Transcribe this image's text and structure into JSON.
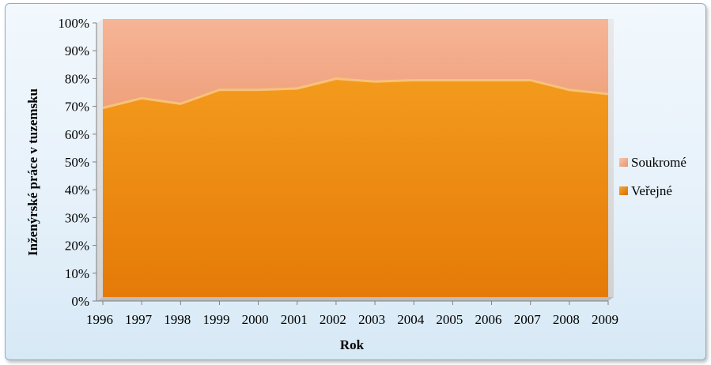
{
  "chart_data": {
    "type": "area",
    "stacked_percent": true,
    "x": [
      "1996",
      "1997",
      "1998",
      "1999",
      "2000",
      "2001",
      "2002",
      "2003",
      "2004",
      "2005",
      "2006",
      "2007",
      "2008",
      "2009"
    ],
    "series": [
      {
        "name": "Veřejné",
        "values": [
          68,
          71.5,
          69.5,
          74.5,
          74.5,
          75,
          78.5,
          77.5,
          78,
          78,
          78,
          78,
          74.5,
          73
        ],
        "color": "#e8820e"
      },
      {
        "name": "Soukromé",
        "values": [
          32,
          28.5,
          30.5,
          25.5,
          25.5,
          25,
          21.5,
          22.5,
          22,
          22,
          22,
          22,
          25.5,
          27
        ],
        "color": "#f0a27c"
      }
    ],
    "yticks": [
      "0%",
      "10%",
      "20%",
      "30%",
      "40%",
      "50%",
      "60%",
      "70%",
      "80%",
      "90%",
      "100%"
    ],
    "ylim": [
      0,
      100
    ],
    "xlabel": "Rok",
    "ylabel": "Inženýrské práce v tuzemsku",
    "legend": {
      "position": "right",
      "order": [
        "Soukromé",
        "Veřejné"
      ]
    }
  }
}
